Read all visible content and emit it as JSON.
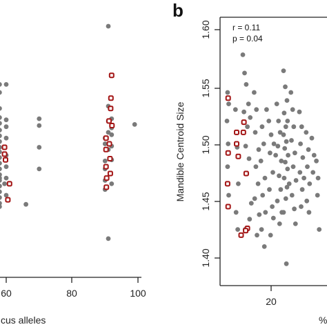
{
  "chart_data": [
    {
      "type": "scatter",
      "title": "",
      "xlabel": "cus alleles",
      "ylabel": "",
      "xlim": [
        56,
        104
      ],
      "ylim": [
        1.38,
        1.62
      ],
      "xticks": [
        60,
        80,
        100
      ],
      "x_tick_labels": [
        "60",
        "80",
        "100"
      ],
      "grid": false,
      "series": [
        {
          "marker": "filled-circle",
          "color": "#7a7a7a",
          "points": [
            [
              58,
              1.47
            ],
            [
              58,
              1.445
            ],
            [
              58,
              1.552
            ],
            [
              58,
              1.545
            ],
            [
              58,
              1.531
            ],
            [
              58,
              1.523
            ],
            [
              58,
              1.518
            ],
            [
              58,
              1.512
            ],
            [
              58,
              1.507
            ],
            [
              58,
              1.502
            ],
            [
              58,
              1.497
            ],
            [
              58,
              1.493
            ],
            [
              58,
              1.488
            ],
            [
              58,
              1.483
            ],
            [
              58,
              1.478
            ],
            [
              58,
              1.473
            ],
            [
              58,
              1.468
            ],
            [
              58,
              1.463
            ],
            [
              58,
              1.458
            ],
            [
              58,
              1.453
            ],
            [
              58,
              1.448
            ],
            [
              60,
              1.552
            ],
            [
              60,
              1.521
            ],
            [
              60,
              1.515
            ],
            [
              60,
              1.505
            ],
            [
              60,
              1.49
            ],
            [
              60,
              1.48
            ],
            [
              60,
              1.47
            ],
            [
              59.5,
              1.465
            ],
            [
              60,
              1.455
            ],
            [
              66,
              1.447
            ],
            [
              70,
              1.522
            ],
            [
              70,
              1.516
            ],
            [
              70,
              1.497
            ],
            [
              70,
              1.478
            ],
            [
              90,
              1.485
            ],
            [
              90,
              1.478
            ],
            [
              90,
              1.468
            ],
            [
              90,
              1.46
            ],
            [
              90,
              1.505
            ],
            [
              90,
              1.5
            ],
            [
              91,
              1.603
            ],
            [
              91,
              1.533
            ],
            [
              91,
              1.52
            ],
            [
              91,
              1.51
            ],
            [
              91,
              1.495
            ],
            [
              91,
              1.417
            ],
            [
              92,
              1.522
            ],
            [
              92,
              1.514
            ],
            [
              92,
              1.508
            ],
            [
              92,
              1.498
            ],
            [
              92,
              1.486
            ],
            [
              92,
              1.465
            ],
            [
              99,
              1.517
            ]
          ]
        },
        {
          "marker": "open-square",
          "color": "#a31515",
          "points": [
            [
              59.5,
              1.497
            ],
            [
              59.5,
              1.491
            ],
            [
              59.8,
              1.486
            ],
            [
              61,
              1.465
            ],
            [
              60.5,
              1.451
            ],
            [
              90.3,
              1.505
            ],
            [
              90.3,
              1.495
            ],
            [
              90.3,
              1.48
            ],
            [
              90.5,
              1.47
            ],
            [
              90.4,
              1.462
            ],
            [
              91.2,
              1.52
            ],
            [
              91.3,
              1.5
            ],
            [
              91.5,
              1.487
            ],
            [
              91.6,
              1.474
            ],
            [
              92,
              1.56
            ],
            [
              91.8,
              1.54
            ],
            [
              91.7,
              1.531
            ],
            [
              92.1,
              1.516
            ]
          ]
        }
      ]
    },
    {
      "type": "scatter",
      "panel_label": "b",
      "title": "",
      "xlabel": "%",
      "ylabel": "Mandible Centroid Size",
      "xlim": [
        11,
        29
      ],
      "ylim": [
        1.38,
        1.62
      ],
      "yticks": [
        1.4,
        1.45,
        1.5,
        1.55,
        1.6
      ],
      "y_tick_labels": [
        "1.40",
        "1.45",
        "1.50",
        "1.55",
        "1.60"
      ],
      "xticks": [
        20
      ],
      "x_tick_labels": [
        "20"
      ],
      "annotations": [
        "r = 0.11",
        "p = 0.04"
      ],
      "grid": false,
      "series": [
        {
          "marker": "filled-circle",
          "color": "#7a7a7a",
          "points": [
            [
              12.3,
              1.545
            ],
            [
              12.5,
              1.535
            ],
            [
              12.2,
              1.52
            ],
            [
              12.4,
              1.5
            ],
            [
              12.3,
              1.48
            ],
            [
              12.5,
              1.455
            ],
            [
              13.7,
              1.53
            ],
            [
              13.9,
              1.51
            ],
            [
              14.0,
              1.497
            ],
            [
              14.2,
              1.465
            ],
            [
              13.8,
              1.44
            ],
            [
              14.1,
              1.425
            ],
            [
              15.0,
              1.578
            ],
            [
              15.3,
              1.562
            ],
            [
              15.6,
              1.552
            ],
            [
              15.2,
              1.528
            ],
            [
              15.8,
              1.515
            ],
            [
              16.0,
              1.535
            ],
            [
              16.3,
              1.523
            ],
            [
              15.5,
              1.498
            ],
            [
              16.1,
              1.487
            ],
            [
              15.7,
              1.474
            ],
            [
              16.5,
              1.448
            ],
            [
              16.2,
              1.434
            ],
            [
              15.4,
              1.425
            ],
            [
              17.0,
              1.545
            ],
            [
              17.4,
              1.53
            ],
            [
              17.2,
              1.51
            ],
            [
              17.8,
              1.495
            ],
            [
              17.3,
              1.48
            ],
            [
              17.7,
              1.465
            ],
            [
              17.1,
              1.452
            ],
            [
              17.9,
              1.438
            ],
            [
              17.5,
              1.42
            ],
            [
              18.4,
              1.515
            ],
            [
              18.7,
              1.5
            ],
            [
              18.2,
              1.485
            ],
            [
              18.9,
              1.47
            ],
            [
              18.5,
              1.455
            ],
            [
              19.0,
              1.44
            ],
            [
              18.3,
              1.425
            ],
            [
              19.2,
              1.53
            ],
            [
              18.8,
              1.41
            ],
            [
              19.6,
              1.52
            ],
            [
              20.0,
              1.508
            ],
            [
              19.8,
              1.492
            ],
            [
              20.3,
              1.475
            ],
            [
              19.7,
              1.46
            ],
            [
              20.2,
              1.445
            ],
            [
              20.5,
              1.5
            ],
            [
              20.8,
              1.49
            ],
            [
              20.4,
              1.435
            ],
            [
              19.9,
              1.42
            ],
            [
              21.0,
              1.535
            ],
            [
              21.3,
              1.52
            ],
            [
              21.6,
              1.51
            ],
            [
              21.2,
              1.498
            ],
            [
              21.8,
              1.485
            ],
            [
              21.4,
              1.472
            ],
            [
              21.7,
              1.46
            ],
            [
              21.1,
              1.45
            ],
            [
              21.9,
              1.44
            ],
            [
              21.5,
              1.43
            ],
            [
              22.2,
              1.564
            ],
            [
              22.5,
              1.55
            ],
            [
              22.8,
              1.538
            ],
            [
              22.3,
              1.527
            ],
            [
              22.9,
              1.52
            ],
            [
              22.6,
              1.515
            ],
            [
              22.2,
              1.508
            ],
            [
              22.7,
              1.502
            ],
            [
              22.4,
              1.496
            ],
            [
              23.0,
              1.49
            ],
            [
              22.5,
              1.484
            ],
            [
              22.9,
              1.478
            ],
            [
              22.3,
              1.47
            ],
            [
              22.8,
              1.462
            ],
            [
              22.6,
              1.452
            ],
            [
              22.2,
              1.44
            ],
            [
              22.7,
              1.395
            ],
            [
              23.2,
              1.465
            ],
            [
              23.5,
              1.545
            ],
            [
              23.8,
              1.53
            ],
            [
              24.0,
              1.515
            ],
            [
              23.6,
              1.503
            ],
            [
              24.2,
              1.492
            ],
            [
              23.9,
              1.48
            ],
            [
              24.4,
              1.468
            ],
            [
              23.7,
              1.455
            ],
            [
              24.1,
              1.443
            ],
            [
              24.3,
              1.43
            ],
            [
              25.0,
              1.528
            ],
            [
              25.4,
              1.515
            ],
            [
              25.2,
              1.5
            ],
            [
              25.6,
              1.488
            ],
            [
              25.1,
              1.475
            ],
            [
              25.5,
              1.46
            ],
            [
              25.3,
              1.445
            ],
            [
              25.8,
              1.47
            ],
            [
              26.2,
              1.51
            ],
            [
              26.6,
              1.495
            ],
            [
              26.4,
              1.48
            ],
            [
              26.8,
              1.465
            ],
            [
              26.3,
              1.45
            ],
            [
              26.7,
              1.44
            ],
            [
              27.2,
              1.505
            ],
            [
              27.6,
              1.49
            ],
            [
              27.4,
              1.475
            ],
            [
              28.0,
              1.485
            ],
            [
              28.3,
              1.47
            ],
            [
              28.2,
              1.455
            ],
            [
              28.5,
              1.425
            ]
          ]
        },
        {
          "marker": "open-square",
          "color": "#a31515",
          "points": [
            [
              12.4,
              1.54
            ],
            [
              12.4,
              1.492
            ],
            [
              12.3,
              1.465
            ],
            [
              12.4,
              1.445
            ],
            [
              13.9,
              1.51
            ],
            [
              13.9,
              1.5
            ],
            [
              14.2,
              1.489
            ],
            [
              15.2,
              1.519
            ],
            [
              15.1,
              1.51
            ],
            [
              15.6,
              1.474
            ],
            [
              15.8,
              1.426
            ],
            [
              15.5,
              1.424
            ],
            [
              14.7,
              1.42
            ]
          ]
        }
      ]
    }
  ]
}
